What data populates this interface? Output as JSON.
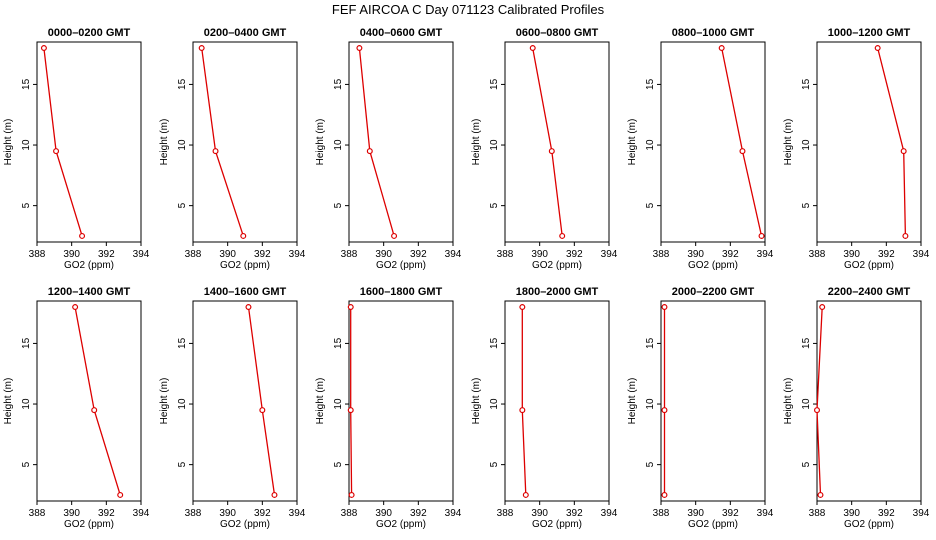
{
  "title": "FEF AIRCOA C  Day 071123  Calibrated Profiles",
  "colors": {
    "series": "#dd0000",
    "axis": "#000000"
  },
  "chart_data": [
    {
      "type": "line",
      "title": "0000–0200 GMT",
      "xlabel": "GO2 (ppm)",
      "ylabel": "Height (m)",
      "xlim": [
        388,
        394
      ],
      "ylim": [
        2,
        18.5
      ],
      "xticks": [
        "388",
        "390",
        "392",
        "394"
      ],
      "yticks": [
        "5",
        "10",
        "15"
      ],
      "x": [
        388.4,
        389.1,
        390.6
      ],
      "y": [
        18,
        9.5,
        2.5
      ]
    },
    {
      "type": "line",
      "title": "0200–0400 GMT",
      "xlabel": "GO2 (ppm)",
      "ylabel": "Height (m)",
      "xlim": [
        388,
        394
      ],
      "ylim": [
        2,
        18.5
      ],
      "xticks": [
        "388",
        "390",
        "392",
        "394"
      ],
      "yticks": [
        "5",
        "10",
        "15"
      ],
      "x": [
        388.5,
        389.3,
        390.9
      ],
      "y": [
        18,
        9.5,
        2.5
      ]
    },
    {
      "type": "line",
      "title": "0400–0600 GMT",
      "xlabel": "GO2 (ppm)",
      "ylabel": "Height (m)",
      "xlim": [
        388,
        394
      ],
      "ylim": [
        2,
        18.5
      ],
      "xticks": [
        "388",
        "390",
        "392",
        "394"
      ],
      "yticks": [
        "5",
        "10",
        "15"
      ],
      "x": [
        388.6,
        389.2,
        390.6
      ],
      "y": [
        18,
        9.5,
        2.5
      ]
    },
    {
      "type": "line",
      "title": "0600–0800 GMT",
      "xlabel": "GO2 (ppm)",
      "ylabel": "Height (m)",
      "xlim": [
        388,
        394
      ],
      "ylim": [
        2,
        18.5
      ],
      "xticks": [
        "388",
        "390",
        "392",
        "394"
      ],
      "yticks": [
        "5",
        "10",
        "15"
      ],
      "x": [
        389.6,
        390.7,
        391.3
      ],
      "y": [
        18,
        9.5,
        2.5
      ]
    },
    {
      "type": "line",
      "title": "0800–1000 GMT",
      "xlabel": "GO2 (ppm)",
      "ylabel": "Height (m)",
      "xlim": [
        388,
        394
      ],
      "ylim": [
        2,
        18.5
      ],
      "xticks": [
        "388",
        "390",
        "392",
        "394"
      ],
      "yticks": [
        "5",
        "10",
        "15"
      ],
      "x": [
        391.5,
        392.7,
        393.8
      ],
      "y": [
        18,
        9.5,
        2.5
      ]
    },
    {
      "type": "line",
      "title": "1000–1200 GMT",
      "xlabel": "GO2 (ppm)",
      "ylabel": "Height (m)",
      "xlim": [
        388,
        394
      ],
      "ylim": [
        2,
        18.5
      ],
      "xticks": [
        "388",
        "390",
        "392",
        "394"
      ],
      "yticks": [
        "5",
        "10",
        "15"
      ],
      "x": [
        391.5,
        393.0,
        393.1
      ],
      "y": [
        18,
        9.5,
        2.5
      ]
    },
    {
      "type": "line",
      "title": "1200–1400 GMT",
      "xlabel": "GO2 (ppm)",
      "ylabel": "Height (m)",
      "xlim": [
        388,
        394
      ],
      "ylim": [
        2,
        18.5
      ],
      "xticks": [
        "388",
        "390",
        "392",
        "394"
      ],
      "yticks": [
        "5",
        "10",
        "15"
      ],
      "x": [
        390.2,
        391.3,
        392.8
      ],
      "y": [
        18,
        9.5,
        2.5
      ]
    },
    {
      "type": "line",
      "title": "1400–1600 GMT",
      "xlabel": "GO2 (ppm)",
      "ylabel": "Height (m)",
      "xlim": [
        388,
        394
      ],
      "ylim": [
        2,
        18.5
      ],
      "xticks": [
        "388",
        "390",
        "392",
        "394"
      ],
      "yticks": [
        "5",
        "10",
        "15"
      ],
      "x": [
        391.2,
        392.0,
        392.7
      ],
      "y": [
        18,
        9.5,
        2.5
      ]
    },
    {
      "type": "line",
      "title": "1600–1800 GMT",
      "xlabel": "GO2 (ppm)",
      "ylabel": "Height (m)",
      "xlim": [
        388,
        394
      ],
      "ylim": [
        2,
        18.5
      ],
      "xticks": [
        "388",
        "390",
        "392",
        "394"
      ],
      "yticks": [
        "5",
        "10",
        "15"
      ],
      "x": [
        388.1,
        388.1,
        388.15
      ],
      "y": [
        18,
        9.5,
        2.5
      ]
    },
    {
      "type": "line",
      "title": "1800–2000 GMT",
      "xlabel": "GO2 (ppm)",
      "ylabel": "Height (m)",
      "xlim": [
        388,
        394
      ],
      "ylim": [
        2,
        18.5
      ],
      "xticks": [
        "388",
        "390",
        "392",
        "394"
      ],
      "yticks": [
        "5",
        "10",
        "15"
      ],
      "x": [
        389.0,
        389.0,
        389.2
      ],
      "y": [
        18,
        9.5,
        2.5
      ]
    },
    {
      "type": "line",
      "title": "2000–2200 GMT",
      "xlabel": "GO2 (ppm)",
      "ylabel": "Height (m)",
      "xlim": [
        388,
        394
      ],
      "ylim": [
        2,
        18.5
      ],
      "xticks": [
        "388",
        "390",
        "392",
        "394"
      ],
      "yticks": [
        "5",
        "10",
        "15"
      ],
      "x": [
        388.2,
        388.2,
        388.2
      ],
      "y": [
        18,
        9.5,
        2.5
      ]
    },
    {
      "type": "line",
      "title": "2200–2400 GMT",
      "xlabel": "GO2 (ppm)",
      "ylabel": "Height (m)",
      "xlim": [
        388,
        394
      ],
      "ylim": [
        2,
        18.5
      ],
      "xticks": [
        "388",
        "390",
        "392",
        "394"
      ],
      "yticks": [
        "5",
        "10",
        "15"
      ],
      "x": [
        388.3,
        388.0,
        388.2
      ],
      "y": [
        18,
        9.5,
        2.5
      ]
    }
  ]
}
